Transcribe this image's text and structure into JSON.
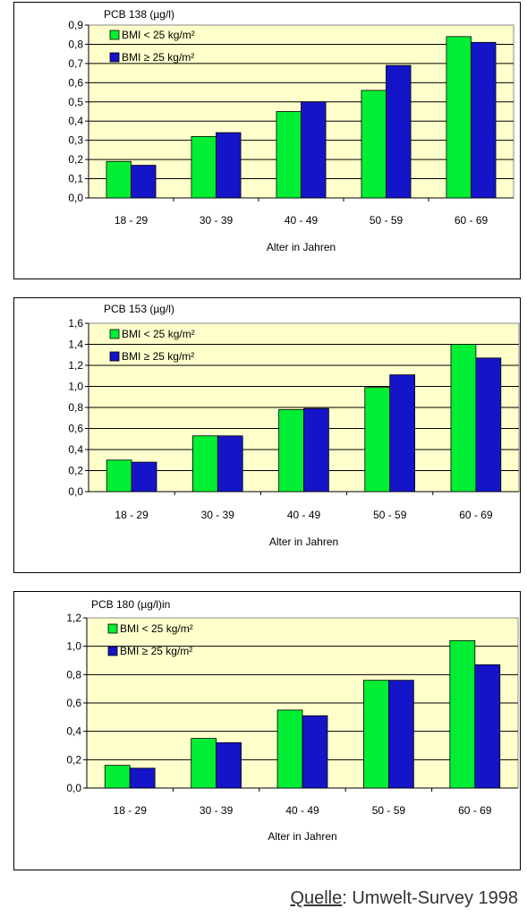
{
  "chart_data": [
    {
      "type": "bar",
      "title": "PCB 138 (µg/l)",
      "categories": [
        "18 - 29",
        "30 - 39",
        "40 - 49",
        "50 - 59",
        "60 - 69"
      ],
      "series": [
        {
          "name": "BMI < 25 kg/m²",
          "values": [
            0.19,
            0.32,
            0.45,
            0.56,
            0.84
          ]
        },
        {
          "name": "BMI ≥ 25 kg/m²",
          "values": [
            0.17,
            0.34,
            0.5,
            0.69,
            0.81
          ]
        }
      ],
      "xlabel": "Alter in Jahren",
      "ylim": [
        0,
        0.9
      ],
      "yticks": [
        "0,0",
        "0,1",
        "0,2",
        "0,3",
        "0,4",
        "0,5",
        "0,6",
        "0,7",
        "0,8",
        "0,9"
      ],
      "grid": true,
      "legend": "top-left",
      "colors": {
        "series1": "#00ee33",
        "series2": "#1414c8",
        "plot_bg": "#ffffcc"
      }
    },
    {
      "type": "bar",
      "title": "PCB 153 (µg/l)",
      "categories": [
        "18 - 29",
        "30 - 39",
        "40 - 49",
        "50 - 59",
        "60 - 69"
      ],
      "series": [
        {
          "name": "BMI < 25 kg/m²",
          "values": [
            0.3,
            0.53,
            0.78,
            0.99,
            1.4
          ]
        },
        {
          "name": "BMI ≥ 25 kg/m²",
          "values": [
            0.28,
            0.53,
            0.79,
            1.11,
            1.27
          ]
        }
      ],
      "xlabel": "Alter in Jahren",
      "ylim": [
        0,
        1.6
      ],
      "yticks": [
        "0,0",
        "0,2",
        "0,4",
        "0,6",
        "0,8",
        "1,0",
        "1,2",
        "1,4",
        "1,6"
      ],
      "grid": true,
      "legend": "top-left",
      "colors": {
        "series1": "#00ee33",
        "series2": "#1414c8",
        "plot_bg": "#ffffcc"
      }
    },
    {
      "type": "bar",
      "title": "PCB 180 (µg/l)in",
      "categories": [
        "18 - 29",
        "30 - 39",
        "40 - 49",
        "50 - 59",
        "60 - 69"
      ],
      "series": [
        {
          "name": "BMI < 25 kg/m²",
          "values": [
            0.16,
            0.35,
            0.55,
            0.76,
            1.04
          ]
        },
        {
          "name": "BMI ≥ 25 kg/m²",
          "values": [
            0.14,
            0.32,
            0.51,
            0.76,
            0.87
          ]
        }
      ],
      "xlabel": "Alter in Jahren",
      "ylim": [
        0,
        1.2
      ],
      "yticks": [
        "0,0",
        "0,2",
        "0,4",
        "0,6",
        "0,8",
        "1,0",
        "1,2"
      ],
      "grid": true,
      "legend": "top-left",
      "colors": {
        "series1": "#00ee33",
        "series2": "#1414c8",
        "plot_bg": "#ffffcc"
      }
    }
  ],
  "source": {
    "label": "Quelle",
    "text": ": Umwelt-Survey 1998"
  }
}
